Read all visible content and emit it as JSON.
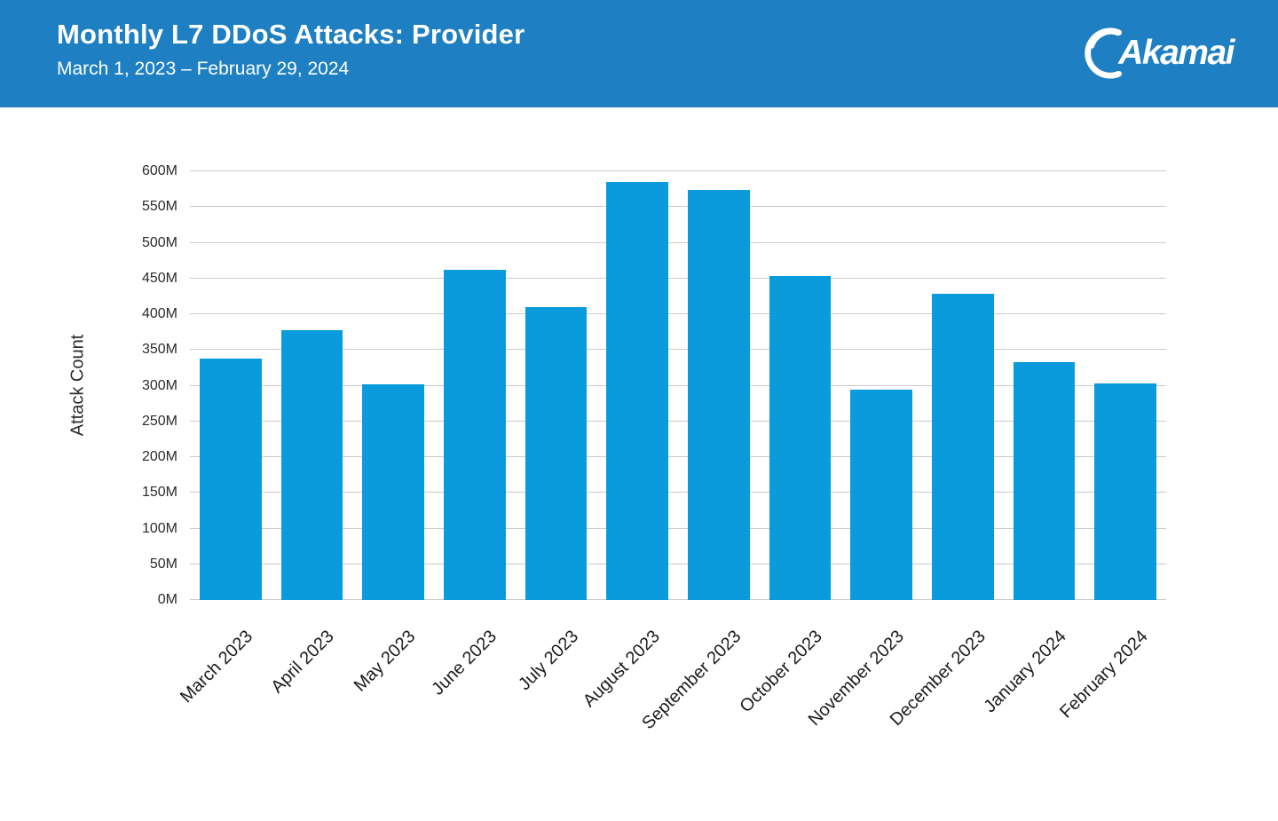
{
  "header": {
    "title": "Monthly L7 DDoS Attacks: Provider",
    "subtitle": "March 1, 2023 – February 29, 2024",
    "logo_text": "Akamai",
    "background_color": "#1e80c2"
  },
  "chart_data": {
    "type": "bar",
    "title": "Monthly L7 DDoS Attacks: Provider",
    "subtitle": "March 1, 2023 – February 29, 2024",
    "categories": [
      "March 2023",
      "April 2023",
      "May 2023",
      "June 2023",
      "July 2023",
      "August 2023",
      "September 2023",
      "October 2023",
      "November 2023",
      "December 2023",
      "January 2024",
      "February 2024"
    ],
    "values": [
      338,
      378,
      302,
      462,
      410,
      585,
      574,
      453,
      295,
      428,
      333,
      303
    ],
    "unit": "M",
    "xlabel": "",
    "ylabel": "Attack Count",
    "ylim": [
      0,
      600
    ],
    "ytick_step": 50,
    "ytick_labels": [
      "0M",
      "50M",
      "100M",
      "150M",
      "200M",
      "250M",
      "300M",
      "350M",
      "400M",
      "450M",
      "500M",
      "550M",
      "600M"
    ],
    "grid": true,
    "legend": false,
    "bar_color": "#0a9bdc",
    "gridline_color": "#cbcbcb",
    "tick_label_color": "#2b2b2b"
  }
}
